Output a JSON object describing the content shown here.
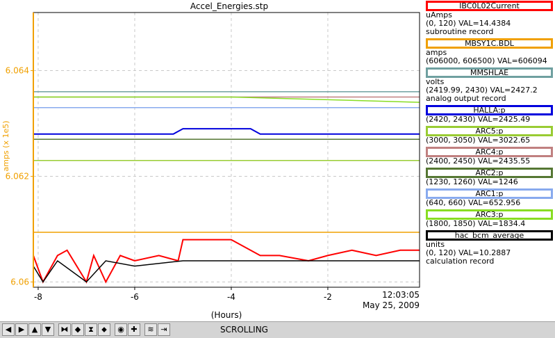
{
  "chart_data": {
    "type": "line",
    "title": "Accel_Energies.stp",
    "xlabel": "(Hours)",
    "ylabel": "amps (x 1e5)",
    "xlim": [
      -8.1,
      -0.1
    ],
    "ylim": [
      6.0599,
      6.0651
    ],
    "x_ticks": [
      -8,
      -6,
      -4,
      -2
    ],
    "x_tick_labels": [
      "-8",
      "-6",
      "-4",
      "-2"
    ],
    "y_ticks": [
      6.06,
      6.062,
      6.064
    ],
    "y_tick_labels": [
      "6.06",
      "6.062",
      "6.064"
    ],
    "end_time": "12:03:05",
    "end_date": "May 25, 2009",
    "grid": true,
    "axis_color": "#f0a000",
    "series": [
      {
        "name": "IBC0L02Current",
        "color": "#ff0000",
        "unit": "uAmps",
        "range": "(0, 120)",
        "val": "VAL=14.4384",
        "rtype": "subroutine record",
        "x": [
          -8.1,
          -7.9,
          -7.6,
          -7.4,
          -7.0,
          -6.85,
          -6.6,
          -6.3,
          -6.0,
          -5.5,
          -5.1,
          -5.0,
          -4.5,
          -4.0,
          -3.4,
          -3.0,
          -2.4,
          -2.0,
          -1.5,
          -1.0,
          -0.5,
          -0.1
        ],
        "y": [
          6.0605,
          6.06,
          6.0605,
          6.0606,
          6.06,
          6.0605,
          6.06,
          6.0605,
          6.0604,
          6.0605,
          6.0604,
          6.0608,
          6.0608,
          6.0608,
          6.0605,
          6.0605,
          6.0604,
          6.0605,
          6.0606,
          6.0605,
          6.0606,
          6.0606
        ]
      },
      {
        "name": "MBSY1C.BDL",
        "color": "#f0a000",
        "unit": "amps",
        "range": "(606000, 606500)",
        "val": "VAL=606094",
        "rtype": "",
        "x": [
          -8.1,
          -0.1
        ],
        "y": [
          6.06094,
          6.06094
        ]
      },
      {
        "name": "MMSHLAE",
        "color": "#6fa0a0",
        "unit": "volts",
        "range": "(2419.99, 2430)",
        "val": "VAL=2427.2",
        "rtype": "analog output record",
        "x": [
          -8.1,
          -0.1
        ],
        "y": [
          6.0636,
          6.0636
        ]
      },
      {
        "name": "HALLA:p",
        "color": "#0000dd",
        "unit": "",
        "range": "(2420, 2430)",
        "val": "VAL=2425.49",
        "rtype": "",
        "x": [
          -8.1,
          -6.5,
          -5.2,
          -5.0,
          -4.4,
          -3.6,
          -3.4,
          -2.0,
          -0.1
        ],
        "y": [
          6.0628,
          6.0628,
          6.0628,
          6.0629,
          6.0629,
          6.0629,
          6.0628,
          6.0628,
          6.0628
        ]
      },
      {
        "name": "ARC5:p",
        "color": "#99cc33",
        "unit": "",
        "range": "(3000, 3050)",
        "val": "VAL=3022.65",
        "rtype": "",
        "x": [
          -8.1,
          -4.0,
          -0.1
        ],
        "y": [
          6.0623,
          6.0623,
          6.0623
        ]
      },
      {
        "name": "ARC4:p",
        "color": "#c08080",
        "unit": "",
        "range": "(2400, 2450)",
        "val": "VAL=2435.55",
        "rtype": "",
        "x": [
          -8.1,
          -4.0,
          -0.1
        ],
        "y": [
          6.0635,
          6.0635,
          6.0635
        ]
      },
      {
        "name": "ARC2:p",
        "color": "#557733",
        "unit": "",
        "range": "(1230, 1260)",
        "val": "VAL=1246",
        "rtype": "",
        "x": [
          -8.1,
          -4.0,
          -0.1
        ],
        "y": [
          6.0627,
          6.0627,
          6.0627
        ]
      },
      {
        "name": "ARC1:p",
        "color": "#88aaee",
        "unit": "",
        "range": "(640, 660)",
        "val": "VAL=652.956",
        "rtype": "",
        "x": [
          -8.1,
          -4.0,
          -0.1
        ],
        "y": [
          6.0633,
          6.0633,
          6.0633
        ]
      },
      {
        "name": "ARC3:p",
        "color": "#88dd22",
        "unit": "",
        "range": "(1800, 1850)",
        "val": "VAL=1834.4",
        "rtype": "",
        "x": [
          -8.1,
          -4.0,
          -0.1
        ],
        "y": [
          6.0635,
          6.0635,
          6.0634
        ]
      },
      {
        "name": "hac_bcm_average",
        "color": "#000000",
        "unit": "units",
        "range": "(0, 120)",
        "val": "VAL=10.2887",
        "rtype": "calculation record",
        "x": [
          -8.1,
          -7.9,
          -7.6,
          -7.0,
          -6.6,
          -6.0,
          -5.0,
          -4.0,
          -3.0,
          -2.0,
          -1.0,
          -0.1
        ],
        "y": [
          6.0603,
          6.06,
          6.0604,
          6.06,
          6.0604,
          6.0603,
          6.0604,
          6.0604,
          6.0604,
          6.0604,
          6.0604,
          6.0604
        ]
      }
    ]
  },
  "toolbar": {
    "buttons": [
      "◀",
      "▶",
      "▲",
      "▼",
      "⧓",
      "◆",
      "⧗",
      "⬥",
      "◉",
      "✚",
      "≋",
      "⇥"
    ],
    "status": "SCROLLING"
  }
}
